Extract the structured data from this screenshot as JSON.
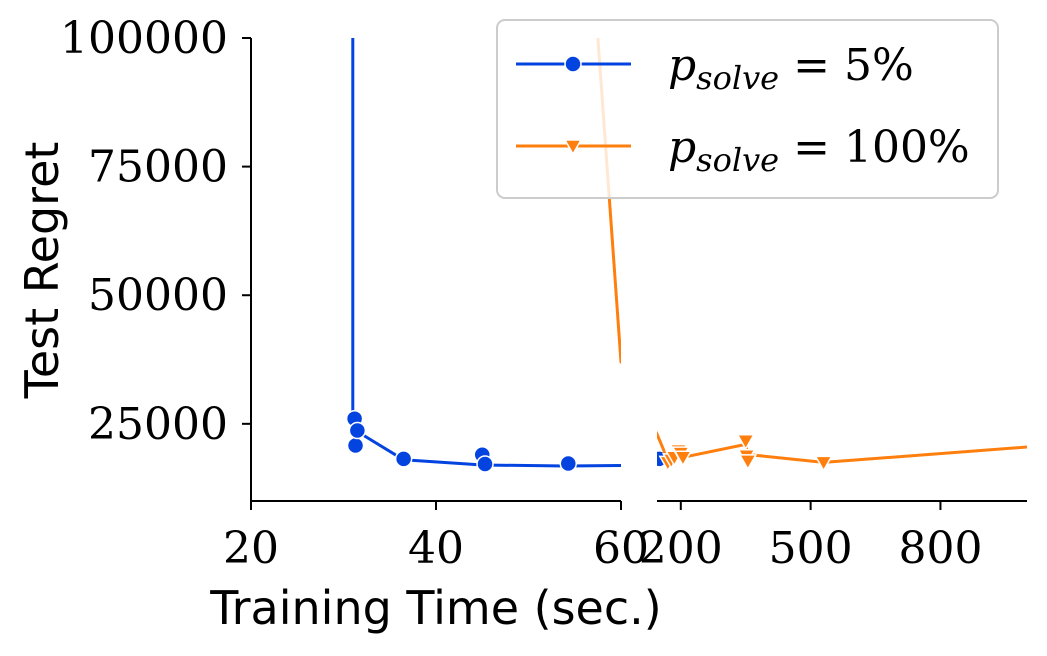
{
  "chart_data": {
    "type": "line",
    "title": "",
    "xlabel": "Training Time (sec.)",
    "ylabel": "Test Regret",
    "broken_x_axis": true,
    "ylim": [
      10000,
      100000
    ],
    "yticks": [
      25000,
      50000,
      75000,
      100000
    ],
    "ytick_labels": [
      "25000",
      "50000",
      "75000",
      "100000"
    ],
    "left_xlim": [
      20,
      60
    ],
    "left_xticks": [
      20,
      40,
      60
    ],
    "left_xtick_labels": [
      "20",
      "40",
      "60"
    ],
    "right_xlim": [
      145,
      1000
    ],
    "right_xticks": [
      200,
      500,
      800
    ],
    "right_xtick_labels": [
      "200",
      "500",
      "800"
    ],
    "grid": false,
    "legend_position": "top-right",
    "series": [
      {
        "name": "p_solve = 5%",
        "legend_math": "p",
        "legend_sub": "solve",
        "legend_rest": " = 5%",
        "color": "#0343df",
        "marker": "circle",
        "line_x": [
          31,
          31,
          31.2,
          31.4,
          31.5,
          36.5,
          45,
          54,
          60,
          145,
          150
        ],
        "line_y": [
          100000,
          24000,
          22000,
          20500,
          23500,
          18000,
          17000,
          16800,
          16900,
          17800,
          18200
        ],
        "points_x": [
          31.2,
          31.3,
          31.5,
          36.5,
          45,
          45.3,
          54.3,
          150
        ],
        "points_y": [
          26000,
          20800,
          23700,
          18200,
          19000,
          17200,
          17300,
          18200
        ]
      },
      {
        "name": "p_solve = 100%",
        "legend_math": "p",
        "legend_sub": "solve",
        "legend_rest": " = 100%",
        "color": "#ff7f0e",
        "marker": "triangle-down",
        "line_x": [
          57.5,
          60,
          145,
          170,
          180,
          190,
          200,
          205,
          350,
          355,
          360,
          530,
          1000
        ],
        "line_y": [
          100000,
          37000,
          23000,
          18000,
          17500,
          18500,
          19500,
          18500,
          21000,
          18500,
          19000,
          17500,
          20500
        ],
        "points_x": [
          170,
          178,
          185,
          195,
          200,
          205,
          350,
          352,
          355,
          530
        ],
        "points_y": [
          17500,
          18000,
          18500,
          19800,
          19300,
          18500,
          21700,
          18800,
          17800,
          17500
        ]
      }
    ]
  }
}
